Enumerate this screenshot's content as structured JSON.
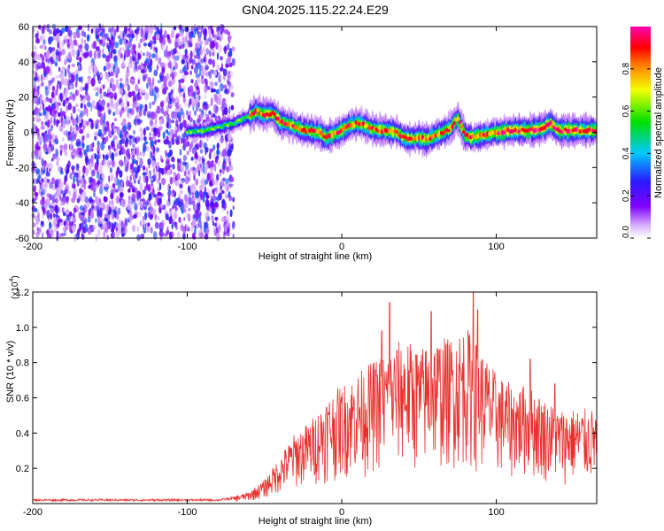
{
  "title": "GN04.2025.115.22.24.E29",
  "chart_data": [
    {
      "type": "heatmap",
      "xlabel": "Height of straight line (km)",
      "ylabel": "Frequency (Hz)",
      "xlim": [
        -200,
        165
      ],
      "ylim": [
        -60,
        60
      ],
      "x_ticks": [
        -200,
        -100,
        0,
        100
      ],
      "y_ticks": [
        -60,
        -40,
        -20,
        0,
        20,
        40,
        60
      ],
      "colorbar": {
        "label": "Normalized spectral amplitude",
        "range": [
          0,
          1
        ],
        "ticks": [
          "0.0",
          "0.2",
          "0.4",
          "0.6",
          "0.8"
        ],
        "colormap": "rainbow (white-violet-blue-cyan-green-yellow-red-magenta)"
      },
      "noise_region_x": [
        -200,
        -70
      ],
      "ridge": {
        "x": [
          -100,
          -90,
          -80,
          -70,
          -60,
          -55,
          -50,
          -45,
          -40,
          -35,
          -30,
          -25,
          -20,
          -15,
          -10,
          -5,
          0,
          5,
          10,
          15,
          20,
          25,
          30,
          35,
          40,
          45,
          50,
          55,
          60,
          65,
          70,
          75,
          80,
          85,
          90,
          95,
          100,
          110,
          120,
          130,
          135,
          140,
          150,
          160,
          165
        ],
        "y": [
          0,
          1,
          3,
          5,
          9,
          12,
          10,
          11,
          6,
          5,
          3,
          1,
          1,
          0,
          -3,
          -1,
          1,
          4,
          5,
          4,
          2,
          1,
          1,
          0,
          -3,
          -4,
          -3,
          -4,
          -2,
          0,
          2,
          8,
          -2,
          -3,
          -2,
          -1,
          0,
          1,
          1,
          2,
          5,
          1,
          1,
          1,
          1
        ]
      }
    },
    {
      "type": "line",
      "xlabel": "Height of straight line (km)",
      "ylabel": "SNR (10 * v/v)",
      "y_multiplier": "(x10",
      "y_multiplier_exp": "4",
      "xlim": [
        -200,
        165
      ],
      "ylim": [
        0,
        1.2
      ],
      "x_ticks": [
        -200,
        -100,
        0,
        100
      ],
      "y_ticks": [
        0.2,
        0.4,
        0.6,
        0.8,
        1.0,
        1.2
      ],
      "color": "#e8312e",
      "envelope": {
        "x": [
          -200,
          -80,
          -70,
          -60,
          -50,
          -40,
          -30,
          -20,
          -10,
          0,
          10,
          20,
          30,
          40,
          50,
          60,
          70,
          80,
          90,
          100,
          110,
          120,
          130,
          140,
          150,
          165
        ],
        "y": [
          0.02,
          0.02,
          0.03,
          0.05,
          0.1,
          0.2,
          0.3,
          0.35,
          0.45,
          0.5,
          0.55,
          0.6,
          0.65,
          0.7,
          0.65,
          0.7,
          0.7,
          0.75,
          0.65,
          0.55,
          0.5,
          0.5,
          0.45,
          0.4,
          0.4,
          0.4
        ]
      },
      "peaks": [
        {
          "x": 31,
          "y": 1.14
        },
        {
          "x": 58,
          "y": 1.09
        },
        {
          "x": 85,
          "y": 1.2
        },
        {
          "x": 88,
          "y": 1.1
        },
        {
          "x": 82,
          "y": 0.95
        },
        {
          "x": 122,
          "y": 0.82
        },
        {
          "x": 138,
          "y": 0.68
        },
        {
          "x": 26,
          "y": 0.98
        },
        {
          "x": 48,
          "y": 0.84
        }
      ]
    }
  ]
}
